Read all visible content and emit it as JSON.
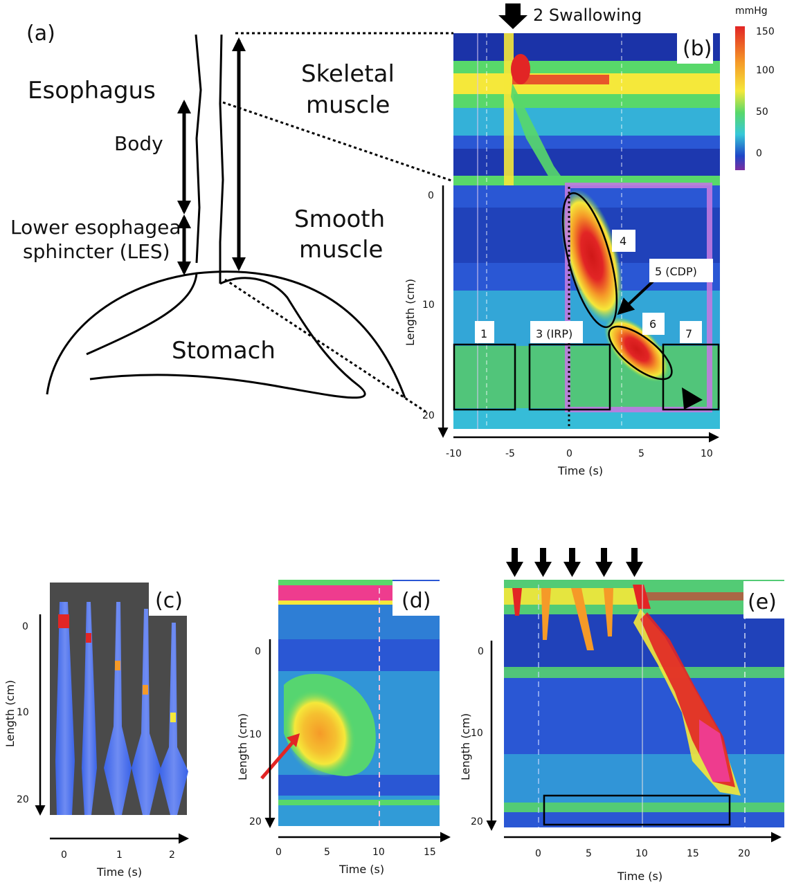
{
  "panel_a": {
    "letter": "(a)",
    "esophagus": "Esophagus",
    "body": "Body",
    "les_line1": "Lower esophageal",
    "les_line2": "sphincter (LES)",
    "skeletal_line1": "Skeletal",
    "skeletal_line2": "muscle",
    "smooth_line1": "Smooth",
    "smooth_line2": "muscle",
    "stomach": "Stomach"
  },
  "panel_b": {
    "letter": "(b)",
    "swallow": "2 Swallowing",
    "unit": "mmHg",
    "colorbar_ticks": [
      "150",
      "100",
      "50",
      "0"
    ],
    "xlabel": "Time (s)",
    "ylabel": "Length (cm)",
    "xticks": [
      "-10",
      "-5",
      "0",
      "5",
      "10"
    ],
    "yticks": [
      "0",
      "10",
      "20"
    ],
    "box1": "1",
    "box3": "3 (IRP)",
    "label4": "4",
    "label5": "5 (CDP)",
    "label6": "6",
    "label7": "7"
  },
  "panel_c": {
    "letter": "(c)",
    "xlabel": "Time (s)",
    "ylabel": "Length (cm)",
    "xticks": [
      "0",
      "1",
      "2"
    ],
    "yticks": [
      "0",
      "10",
      "20"
    ]
  },
  "panel_d": {
    "letter": "(d)",
    "xlabel": "Time (s)",
    "ylabel": "Length (cm)",
    "xticks": [
      "0",
      "5",
      "10",
      "15"
    ],
    "yticks": [
      "0",
      "10",
      "20"
    ]
  },
  "panel_e": {
    "letter": "(e)",
    "xlabel": "Time (s)",
    "ylabel": "Length (cm)",
    "xticks": [
      "0",
      "5",
      "10",
      "15",
      "20"
    ],
    "yticks": [
      "0",
      "10",
      "20"
    ]
  },
  "colors": {
    "bg_blue": "#1f46c8",
    "mid_cyan": "#37c8d8",
    "green": "#58d86a",
    "yellow": "#f5e83a",
    "orange": "#f59a28",
    "red": "#e22525",
    "pink": "#ee3c8e",
    "purple_box": "#c07ae0"
  }
}
